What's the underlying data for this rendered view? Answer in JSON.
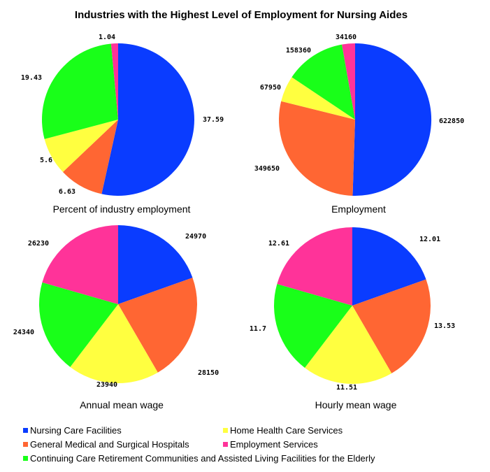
{
  "title": "Industries with the Highest Level of Employment for Nursing Aides",
  "chart_data": [
    {
      "type": "pie",
      "caption": "Percent of industry employment",
      "categories": [
        "Nursing Care Facilities",
        "General Medical and Surgical Hospitals",
        "Home Health Care Services",
        "Continuing Care Retirement Communities and Assisted Living Facilities for the Elderly",
        "Employment Services"
      ],
      "values": [
        37.59,
        6.63,
        5.6,
        19.43,
        1.04
      ],
      "labels": [
        "37.59",
        "6.63",
        "5.6",
        "19.43",
        "1.04"
      ]
    },
    {
      "type": "pie",
      "caption": "Employment",
      "categories": [
        "Nursing Care Facilities",
        "General Medical and Surgical Hospitals",
        "Home Health Care Services",
        "Continuing Care Retirement Communities and Assisted Living Facilities for the Elderly",
        "Employment Services"
      ],
      "values": [
        622850,
        349650,
        67950,
        158360,
        34160
      ],
      "labels": [
        "622850",
        "349650",
        "67950",
        "158360",
        "34160"
      ]
    },
    {
      "type": "pie",
      "caption": "Annual mean wage",
      "categories": [
        "Nursing Care Facilities",
        "General Medical and Surgical Hospitals",
        "Home Health Care Services",
        "Continuing Care Retirement Communities and Assisted Living Facilities for the Elderly",
        "Employment Services"
      ],
      "values": [
        24970,
        28150,
        23940,
        24340,
        26230
      ],
      "labels": [
        "24970",
        "28150",
        "23940",
        "24340",
        "26230"
      ]
    },
    {
      "type": "pie",
      "caption": "Hourly mean wage",
      "categories": [
        "Nursing Care Facilities",
        "General Medical and Surgical Hospitals",
        "Home Health Care Services",
        "Continuing Care Retirement Communities and Assisted Living Facilities for the Elderly",
        "Employment Services"
      ],
      "values": [
        12.01,
        13.53,
        11.51,
        11.7,
        12.61
      ],
      "labels": [
        "12.01",
        "13.53",
        "11.51",
        "11.7",
        "12.61"
      ]
    }
  ],
  "legend": [
    {
      "label": "Nursing Care Facilities",
      "color": "#0a3cff"
    },
    {
      "label": "Home Health Care Services",
      "color": "#ffff40"
    },
    {
      "label": "General Medical and Surgical Hospitals",
      "color": "#ff6633"
    },
    {
      "label": "Employment Services",
      "color": "#ff3399"
    },
    {
      "label": "Continuing Care Retirement Communities and Assisted Living Facilities for the Elderly",
      "color": "#19ff19"
    }
  ],
  "colors": [
    "#0a3cff",
    "#ff6633",
    "#ffff40",
    "#19ff19",
    "#ff3399"
  ]
}
